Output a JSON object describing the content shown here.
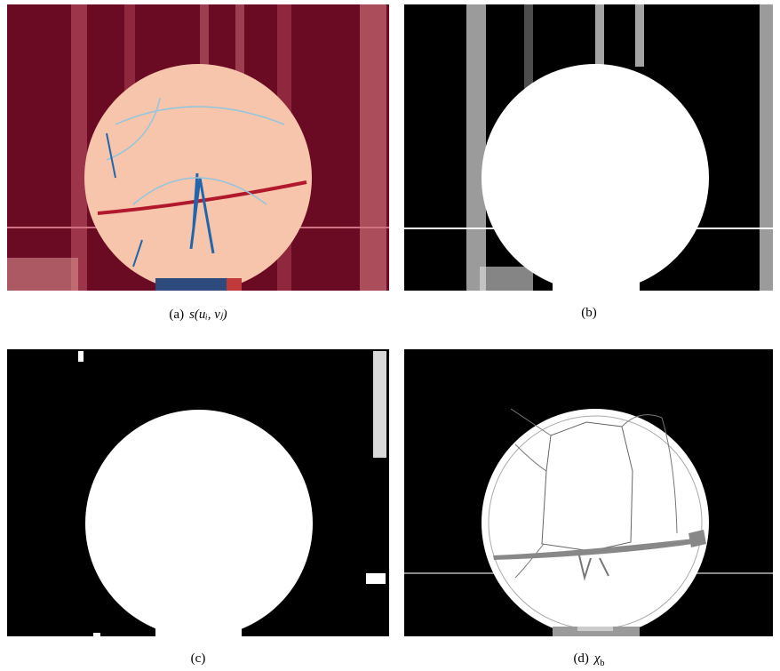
{
  "figure": {
    "panels": [
      {
        "label": "(a)",
        "math": "s(uᵢ, vⱼ)"
      },
      {
        "label": "(b)"
      },
      {
        "label": "(c)"
      },
      {
        "label": "(d)",
        "symbol": "χ",
        "subscript": "b"
      }
    ]
  }
}
